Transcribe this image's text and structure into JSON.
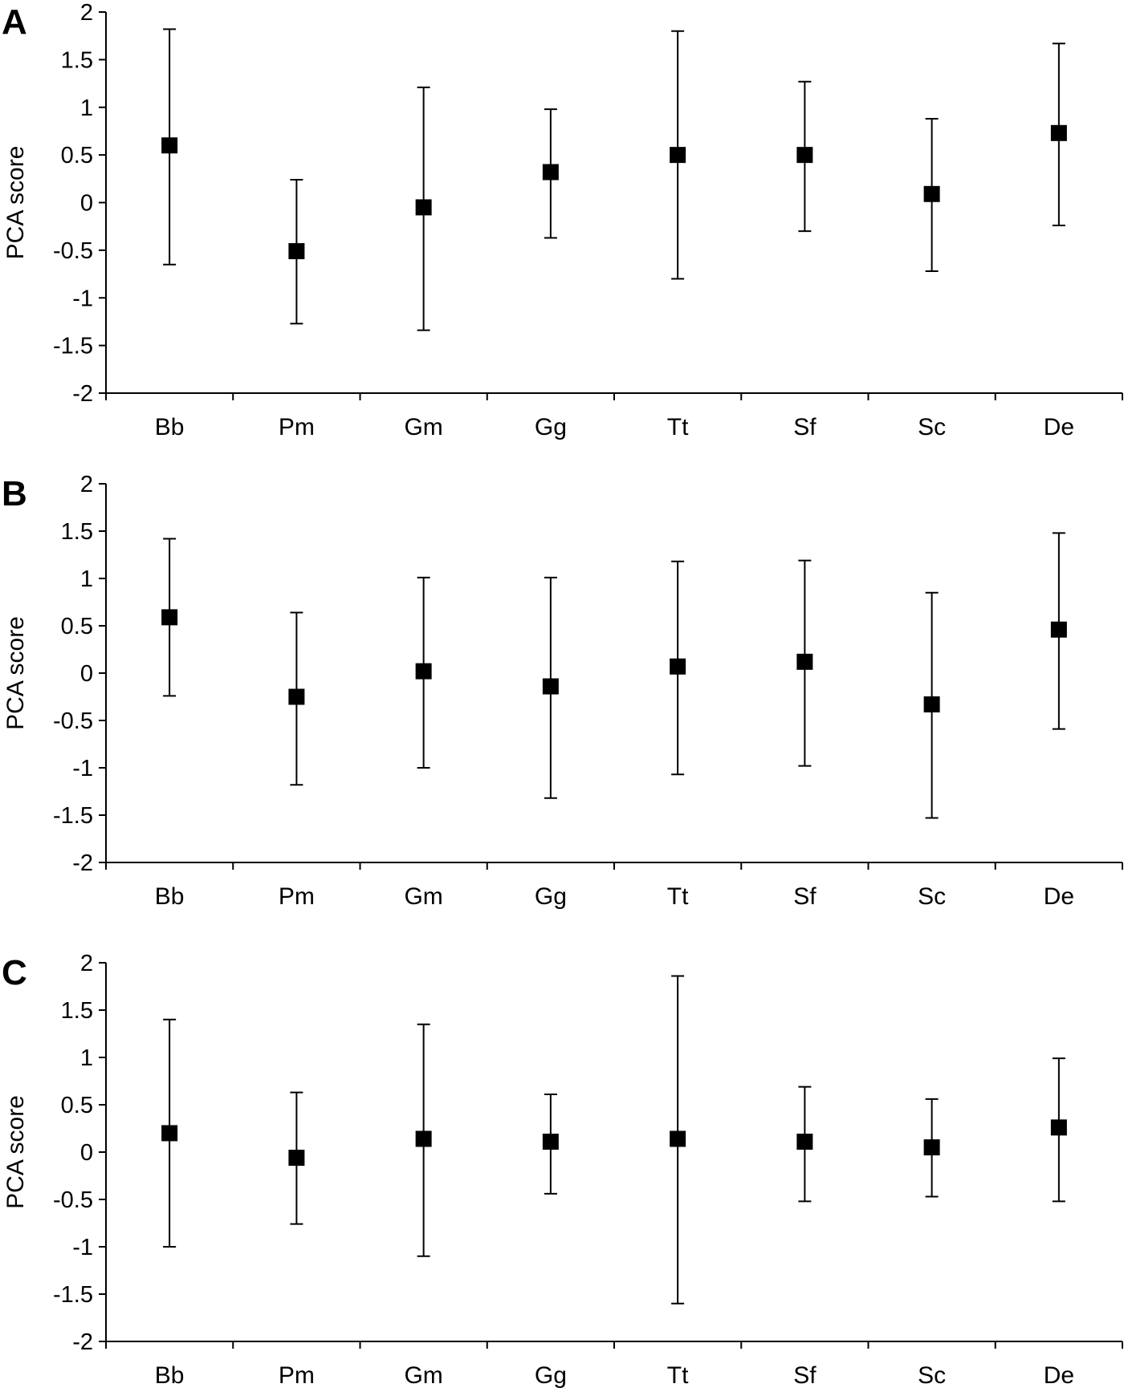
{
  "chart_data": [
    {
      "type": "scatter",
      "panel": "A",
      "ylabel": "PCA score",
      "xlabel": "",
      "ylim": [
        -2,
        2
      ],
      "yticks": [
        "2",
        "1.5",
        "1",
        "0.5",
        "0",
        "-0.5",
        "-1",
        "-1.5",
        "-2"
      ],
      "categories": [
        "Bb",
        "Pm",
        "Gm",
        "Gg",
        "Tt",
        "Sf",
        "Sc",
        "De"
      ],
      "values": [
        0.6,
        -0.51,
        -0.05,
        0.32,
        0.5,
        0.5,
        0.09,
        0.73
      ],
      "error_upper": [
        1.82,
        0.24,
        1.21,
        0.98,
        1.8,
        1.27,
        0.88,
        1.67
      ],
      "error_lower": [
        -0.65,
        -1.27,
        -1.34,
        -0.37,
        -0.8,
        -0.3,
        -0.72,
        -0.24
      ]
    },
    {
      "type": "scatter",
      "panel": "B",
      "ylabel": "PCA score",
      "xlabel": "",
      "ylim": [
        -2,
        2
      ],
      "yticks": [
        "2",
        "1.5",
        "1",
        "0.5",
        "0",
        "-0.5",
        "-1",
        "-1.5",
        "-2"
      ],
      "categories": [
        "Bb",
        "Pm",
        "Gm",
        "Gg",
        "Tt",
        "Sf",
        "Sc",
        "De"
      ],
      "values": [
        0.59,
        -0.25,
        0.02,
        -0.14,
        0.07,
        0.12,
        -0.33,
        0.46
      ],
      "error_upper": [
        1.42,
        0.64,
        1.01,
        1.01,
        1.18,
        1.19,
        0.85,
        1.48
      ],
      "error_lower": [
        -0.24,
        -1.18,
        -1.0,
        -1.32,
        -1.07,
        -0.98,
        -1.53,
        -0.59
      ]
    },
    {
      "type": "scatter",
      "panel": "C",
      "ylabel": "PCA score",
      "xlabel": "",
      "ylim": [
        -2,
        2
      ],
      "yticks": [
        "2",
        "1.5",
        "1",
        "0.5",
        "0",
        "-0.5",
        "-1",
        "-1.5",
        "-2"
      ],
      "categories": [
        "Bb",
        "Pm",
        "Gm",
        "Gg",
        "Tt",
        "Sf",
        "Sc",
        "De"
      ],
      "values": [
        0.2,
        -0.06,
        0.14,
        0.11,
        0.14,
        0.11,
        0.05,
        0.26
      ],
      "error_upper": [
        1.4,
        0.63,
        1.35,
        0.61,
        1.86,
        0.69,
        0.56,
        0.99
      ],
      "error_lower": [
        -1.0,
        -0.76,
        -1.1,
        -0.44,
        -1.6,
        -0.52,
        -0.47,
        -0.52
      ]
    }
  ]
}
